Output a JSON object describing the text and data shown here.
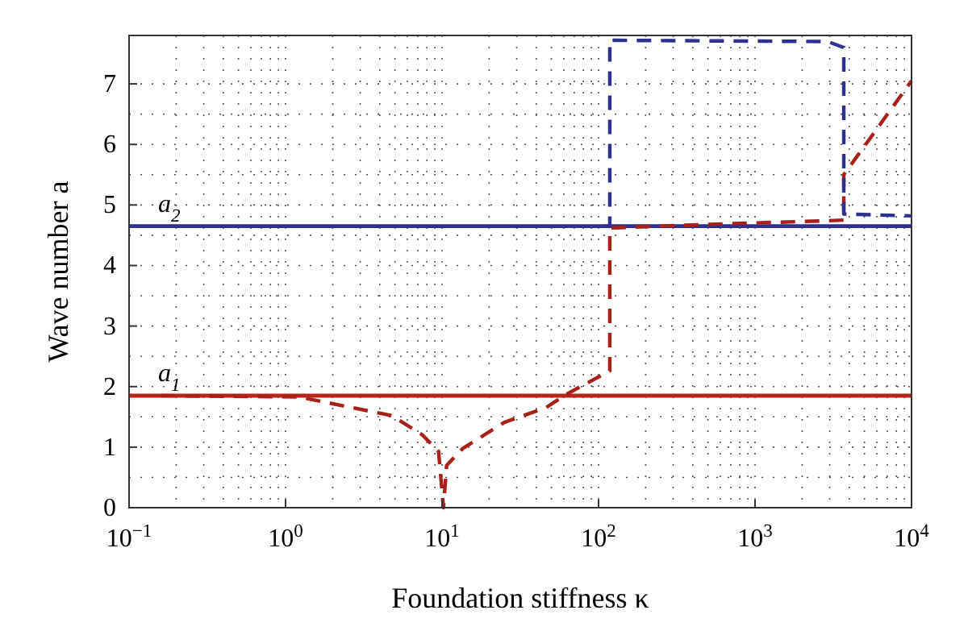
{
  "chart_data": {
    "type": "line",
    "xlabel": "Foundation stiffness κ",
    "ylabel": "Wave number a",
    "log": "x",
    "xlim": [
      0.1,
      10000
    ],
    "xticks": [
      {
        "value": 0.1,
        "label": "10$^{−1}$"
      },
      {
        "value": 1,
        "label": "10$^{0}$"
      },
      {
        "value": 10,
        "label": "10$^{1}$"
      },
      {
        "value": 100,
        "label": "10$^{2}$"
      },
      {
        "value": 1000,
        "label": "10$^{3}$"
      },
      {
        "value": 10000,
        "label": "10$^{4}$"
      }
    ],
    "ylim": [
      0,
      7.8
    ],
    "yticks": [
      0,
      1,
      2,
      3,
      4,
      5,
      6,
      7
    ],
    "grid": true,
    "line_style": "dashed",
    "series": [
      {
        "color": "#a8201a",
        "x": [
          0.16,
          1.21,
          1.73,
          4.8,
          7.5,
          9.5,
          10.2,
          10.7,
          13.6,
          25,
          46,
          61,
          118,
          118,
          514,
          2910,
          3690,
          3690,
          10000
        ],
        "values": [
          1.85,
          1.83,
          1.75,
          1.52,
          1.2,
          0.93,
          0,
          0.7,
          0.98,
          1.41,
          1.65,
          1.86,
          2.26,
          4.62,
          4.68,
          4.74,
          4.75,
          5.5,
          7.05
        ]
      },
      {
        "color": "#2e3192",
        "x": [
          110,
          118,
          118,
          2910,
          3690,
          3690,
          10000
        ],
        "values": [
          4.65,
          4.65,
          7.72,
          7.7,
          7.6,
          4.85,
          4.82
        ]
      }
    ],
    "ref_lines": [
      {
        "axis": "y",
        "value": 1.85,
        "label": "a$_{1}$",
        "color": "#b5271e",
        "line_style": "solid"
      },
      {
        "axis": "y",
        "value": 4.65,
        "label": "a$_{2}$",
        "color": "#2e3192",
        "line_style": "solid"
      }
    ]
  }
}
